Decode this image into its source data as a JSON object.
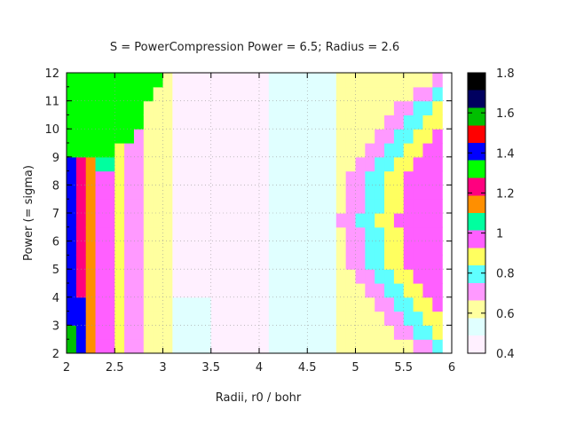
{
  "chart_data": {
    "type": "heatmap",
    "title": "S = PowerCompression  Power = 6.5; Radius = 2.6",
    "xlabel": "Radii, r0 / bohr",
    "ylabel": "Power (= sigma)",
    "xlim": [
      2,
      6
    ],
    "ylim": [
      2,
      12
    ],
    "x_ticks": [
      "2",
      "2.5",
      "3",
      "3.5",
      "4",
      "4.5",
      "5",
      "5.5",
      "6"
    ],
    "y_ticks": [
      "2",
      "3",
      "4",
      "5",
      "6",
      "7",
      "8",
      "9",
      "10",
      "11",
      "12"
    ],
    "colorbar": {
      "range": [
        0.4,
        1.8
      ],
      "ticks": [
        "0.4",
        "0.6",
        "0.8",
        "1",
        "1.2",
        "1.4",
        "1.6",
        "1.8"
      ],
      "palette": [
        "#fff0ff",
        "#e0ffff",
        "#ffff9f",
        "#ff99ff",
        "#5fffff",
        "#ffff5f",
        "#ff5fff",
        "#00ff9f",
        "#ff8f00",
        "#ff007f",
        "#00ff00",
        "#0000ff",
        "#ff0000",
        "#00bf00",
        "#00005f",
        "#000000"
      ]
    },
    "x_values": [
      2.0,
      2.1,
      2.2,
      2.3,
      2.4,
      2.5,
      2.6,
      2.7,
      2.8,
      2.9,
      3.0,
      3.1,
      3.2,
      3.3,
      3.4,
      3.5,
      3.6,
      3.7,
      3.8,
      3.9,
      4.0,
      4.1,
      4.2,
      4.3,
      4.4,
      4.5,
      4.6,
      4.7,
      4.8,
      4.9,
      5.0,
      5.1,
      5.2,
      5.3,
      5.4,
      5.5,
      5.6,
      5.7,
      5.8
    ],
    "y_values": [
      2.0,
      2.5,
      3.0,
      3.5,
      4.0,
      4.5,
      5.0,
      5.5,
      6.0,
      6.5,
      7.0,
      7.5,
      8.0,
      8.5,
      9.0,
      9.5,
      10.0,
      10.5,
      11.0,
      11.5
    ],
    "grid": true
  }
}
